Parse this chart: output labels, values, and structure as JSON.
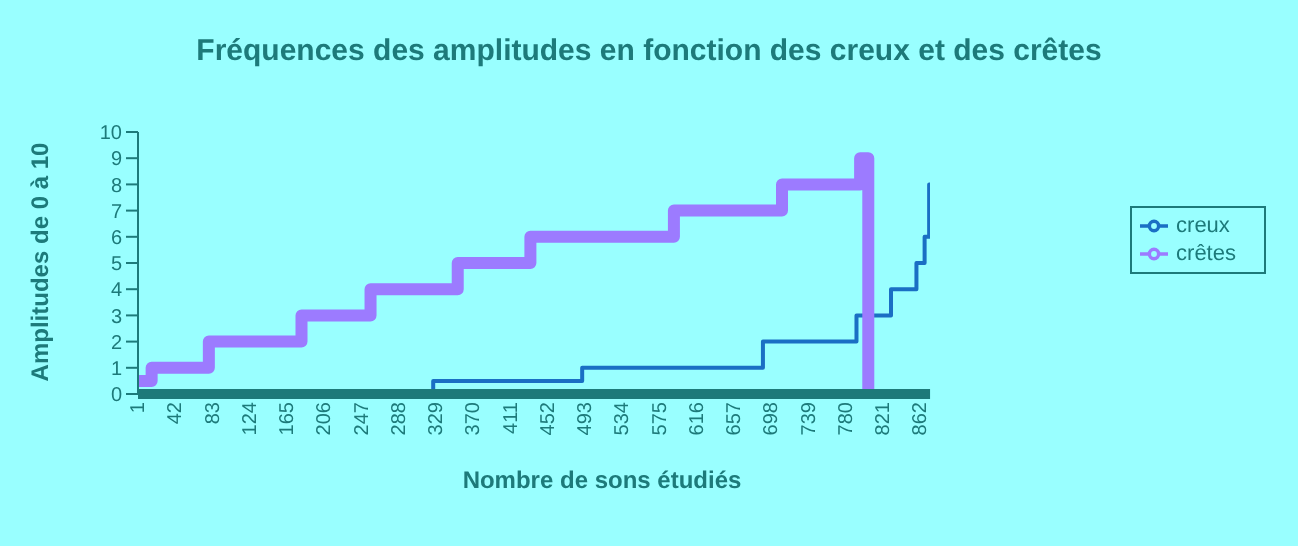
{
  "chart_data": {
    "type": "step",
    "title": "Fréquences des amplitudes en fonction des creux et des crêtes",
    "xlabel": "Nombre de sons étudiés",
    "ylabel": "Amplitudes de 0 à 10",
    "xlim": [
      1,
      873
    ],
    "xticks": [
      1,
      42,
      83,
      124,
      165,
      206,
      247,
      288,
      329,
      370,
      411,
      452,
      493,
      534,
      575,
      616,
      657,
      698,
      739,
      780,
      821,
      862
    ],
    "ylim": [
      0,
      10
    ],
    "yticks": [
      0,
      1,
      2,
      3,
      4,
      5,
      6,
      7,
      8,
      9,
      10
    ],
    "grid": false,
    "legend": "right",
    "marker": "none",
    "series": [
      {
        "name": "creux",
        "color": "#1a6fc4",
        "x": [
          1,
          326,
          490,
          689,
          792,
          830,
          858,
          867,
          872,
          873
        ],
        "values": [
          0,
          0.5,
          1,
          2,
          3,
          4,
          5,
          6,
          8,
          8
        ]
      },
      {
        "name": "crêtes",
        "color": "#9c7bff",
        "x": [
          1,
          16,
          79,
          181,
          257,
          353,
          433,
          591,
          710,
          796,
          805
        ],
        "values": [
          0.5,
          1,
          2,
          3,
          4,
          5,
          6,
          7,
          8,
          9,
          0
        ]
      }
    ]
  }
}
